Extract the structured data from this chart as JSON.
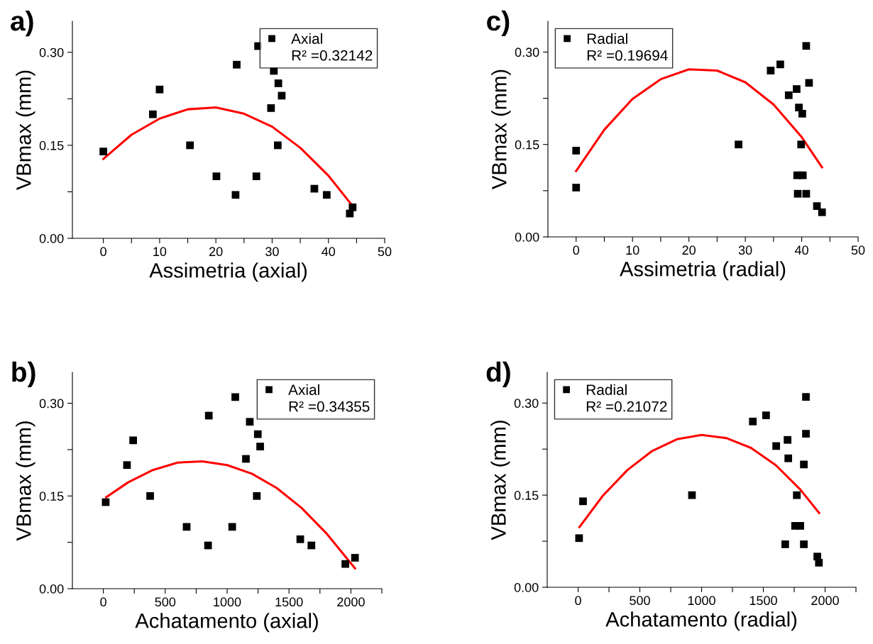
{
  "chart_data": [
    {
      "type": "scatter",
      "title": "a)",
      "xlabel": "Assimetria (axial)",
      "ylabel": "VBmax (mm)",
      "xlim": [
        -5.5,
        50
      ],
      "ylim": [
        0,
        0.35
      ],
      "xticks": [
        0,
        {
          "value": 5,
          "label": null
        },
        10,
        {
          "value": 15,
          "label": null
        },
        20,
        {
          "value": 25,
          "label": null
        },
        30,
        {
          "value": 35,
          "label": null
        },
        40,
        {
          "value": 45,
          "label": null
        },
        50
      ],
      "yticks": [
        {
          "value": 0,
          "label": "0.00"
        },
        {
          "value": 0.075,
          "label": null
        },
        {
          "value": 0.15,
          "label": "0.15"
        },
        {
          "value": 0.225,
          "label": null
        },
        {
          "value": 0.3,
          "label": "0.30"
        }
      ],
      "legend": "top right",
      "grid": false,
      "annotations": [
        "R² =0.32142"
      ],
      "series": [
        {
          "name": "Axial",
          "marker": "square",
          "color": "#000000",
          "x": [
            0,
            8.8,
            10,
            15.4,
            20.1,
            23.5,
            23.7,
            27.2,
            27.5,
            29.8,
            30.3,
            31.1,
            31,
            31.7,
            37.5,
            39.7,
            43.8,
            44.3
          ],
          "values": [
            0.14,
            0.2,
            0.24,
            0.15,
            0.1,
            0.07,
            0.28,
            0.1,
            0.31,
            0.21,
            0.27,
            0.25,
            0.15,
            0.23,
            0.08,
            0.07,
            0.04,
            0.05
          ]
        },
        {
          "type": "line",
          "color": "#ff0000",
          "x": [
            0,
            5,
            10,
            15,
            20,
            25,
            30,
            35,
            40,
            44.4
          ],
          "values": [
            0.128,
            0.167,
            0.193,
            0.208,
            0.211,
            0.201,
            0.18,
            0.146,
            0.101,
            0.051
          ]
        }
      ]
    },
    {
      "type": "scatter",
      "title": "c)",
      "xlabel": "Assimetria (radial)",
      "ylabel": "VBmax (mm)",
      "xlim": [
        -5,
        50
      ],
      "ylim": [
        0,
        0.35
      ],
      "xticks": [
        0,
        {
          "value": 5,
          "label": null
        },
        10,
        {
          "value": 15,
          "label": null
        },
        20,
        {
          "value": 25,
          "label": null
        },
        30,
        {
          "value": 35,
          "label": null
        },
        40,
        {
          "value": 45,
          "label": null
        },
        50
      ],
      "yticks": [
        {
          "value": 0,
          "label": "0.00"
        },
        {
          "value": 0.075,
          "label": null
        },
        {
          "value": 0.15,
          "label": "0.15"
        },
        {
          "value": 0.225,
          "label": null
        },
        {
          "value": 0.3,
          "label": "0.30"
        }
      ],
      "legend": "top left",
      "grid": false,
      "annotations": [
        "R² =0.19694"
      ],
      "series": [
        {
          "name": "Radial",
          "marker": "square",
          "color": "#000000",
          "x": [
            0,
            0,
            28.8,
            34.5,
            36.2,
            37.7,
            39.1,
            39.5,
            40.1,
            39.9,
            39.2,
            40.2,
            39.3,
            40.8,
            40.8,
            41.3,
            42.7,
            43.6
          ],
          "values": [
            0.14,
            0.08,
            0.15,
            0.27,
            0.28,
            0.23,
            0.24,
            0.21,
            0.2,
            0.15,
            0.1,
            0.1,
            0.07,
            0.07,
            0.31,
            0.25,
            0.05,
            0.04
          ]
        },
        {
          "type": "line",
          "color": "#ff0000",
          "x": [
            0,
            5,
            10,
            15,
            20,
            25,
            30,
            35,
            40,
            43.6
          ],
          "values": [
            0.107,
            0.174,
            0.224,
            0.256,
            0.272,
            0.27,
            0.251,
            0.215,
            0.162,
            0.113
          ]
        }
      ]
    },
    {
      "type": "scatter",
      "title": "b)",
      "xlabel": "Achatamento (axial)",
      "ylabel": "VBmax (mm)",
      "xlim": [
        -250,
        2250
      ],
      "ylim": [
        0,
        0.35
      ],
      "xticks": [
        0,
        {
          "value": 250,
          "label": null
        },
        500,
        {
          "value": 750,
          "label": null
        },
        1000,
        {
          "value": 1250,
          "label": null
        },
        1500,
        {
          "value": 1750,
          "label": null
        },
        2000,
        {
          "value": 2250,
          "label": null
        }
      ],
      "yticks": [
        {
          "value": 0,
          "label": "0.00"
        },
        {
          "value": 0.075,
          "label": null
        },
        {
          "value": 0.15,
          "label": "0.15"
        },
        {
          "value": 0.225,
          "label": null
        },
        {
          "value": 0.3,
          "label": "0.30"
        }
      ],
      "legend": "top right",
      "grid": false,
      "annotations": [
        "R² =0.34355"
      ],
      "series": [
        {
          "name": "Axial",
          "marker": "square",
          "color": "#000000",
          "x": [
            19,
            191,
            241,
            378,
            673,
            846,
            852,
            1041,
            1066,
            1152,
            1183,
            1248,
            1240,
            1267,
            1591,
            1681,
            1955,
            2033
          ],
          "values": [
            0.14,
            0.2,
            0.24,
            0.15,
            0.1,
            0.07,
            0.28,
            0.1,
            0.31,
            0.21,
            0.27,
            0.25,
            0.15,
            0.23,
            0.08,
            0.07,
            0.04,
            0.05
          ]
        },
        {
          "type": "line",
          "color": "#ff0000",
          "x": [
            23,
            200,
            400,
            600,
            800,
            1000,
            1200,
            1400,
            1600,
            1800,
            2033
          ],
          "values": [
            0.148,
            0.172,
            0.192,
            0.204,
            0.206,
            0.2,
            0.186,
            0.163,
            0.131,
            0.09,
            0.033
          ]
        }
      ]
    },
    {
      "type": "scatter",
      "title": "d)",
      "xlabel": "Achatamento (radial)",
      "ylabel": "VBmax (mm)",
      "xlim": [
        -250,
        2250
      ],
      "ylim": [
        0,
        0.35
      ],
      "xticks": [
        0,
        {
          "value": 250,
          "label": null
        },
        500,
        {
          "value": 750,
          "label": null
        },
        1000,
        {
          "value": 1250,
          "label": null
        },
        1500,
        {
          "value": 1750,
          "label": null
        },
        2000,
        {
          "value": 2250,
          "label": null
        }
      ],
      "yticks": [
        {
          "value": 0,
          "label": "0.00"
        },
        {
          "value": 0.075,
          "label": null
        },
        {
          "value": 0.15,
          "label": "0.15"
        },
        {
          "value": 0.225,
          "label": null
        },
        {
          "value": 0.3,
          "label": "0.30"
        }
      ],
      "legend": "top left",
      "grid": false,
      "annotations": [
        "R² =0.21072"
      ],
      "series": [
        {
          "name": "Radial",
          "marker": "square",
          "color": "#000000",
          "x": [
            8,
            40,
            922,
            1415,
            1522,
            1604,
            1696,
            1702,
            1845,
            1845,
            1828,
            1771,
            1757,
            1799,
            1677,
            1828,
            1937,
            1950
          ],
          "values": [
            0.08,
            0.14,
            0.15,
            0.27,
            0.28,
            0.23,
            0.24,
            0.21,
            0.31,
            0.25,
            0.2,
            0.15,
            0.1,
            0.1,
            0.07,
            0.07,
            0.05,
            0.04
          ]
        },
        {
          "type": "line",
          "color": "#ff0000",
          "x": [
            11,
            200,
            400,
            600,
            800,
            1000,
            1200,
            1400,
            1600,
            1800,
            1952
          ],
          "values": [
            0.098,
            0.149,
            0.191,
            0.222,
            0.241,
            0.248,
            0.243,
            0.227,
            0.199,
            0.159,
            0.121
          ]
        }
      ]
    }
  ]
}
